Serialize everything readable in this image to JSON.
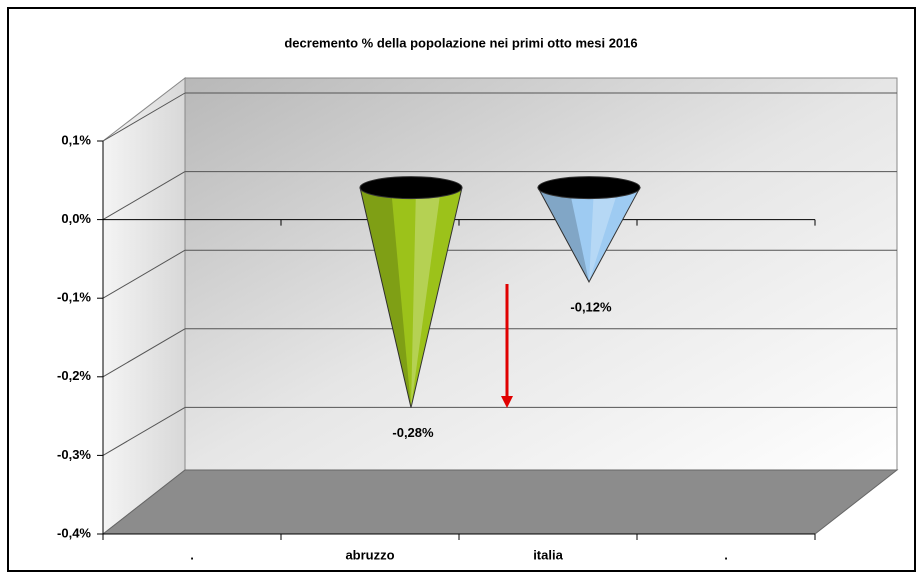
{
  "chart_data": {
    "type": "cone",
    "title": "decremento % della popolazione nei primi otto mesi 2016",
    "categories": [
      ".",
      "abruzzo",
      "italia",
      "."
    ],
    "values": [
      null,
      -0.28,
      -0.12,
      null
    ],
    "value_labels": [
      null,
      "-0,28%",
      "-0,12%",
      null
    ],
    "colors": [
      null,
      "#9cc21a",
      "#9ecbf2",
      null
    ],
    "ylim": [
      -0.4,
      0.1
    ],
    "yticks": [
      {
        "value": 0.1,
        "label": "0,1%"
      },
      {
        "value": 0,
        "label": "0,0%"
      },
      {
        "value": -0.1,
        "label": "-0,1%"
      },
      {
        "value": -0.2,
        "label": "-0,2%"
      },
      {
        "value": -0.3,
        "label": "-0,3%"
      },
      {
        "value": -0.4,
        "label": "-0,4%"
      }
    ],
    "grid": true
  }
}
